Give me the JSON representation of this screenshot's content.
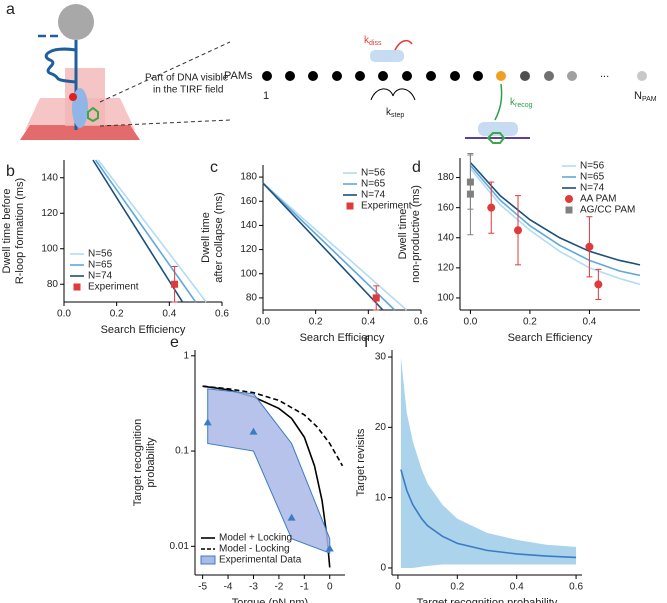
{
  "panel_a": {
    "label": "a",
    "pams": "PAMs",
    "first": "1",
    "last": "N",
    "last_sub": "PAM",
    "k": "k",
    "k_diss_sub": "diss",
    "k_step_sub": "step",
    "k_recog_sub": "recog",
    "ellipsis": "...",
    "note": [
      "Part of DNA visible",
      "in the TIRF field"
    ]
  },
  "chart_data": [
    {
      "type": "line",
      "panel": "b",
      "xlabel": "Search Efficiency",
      "ylabel": [
        "Dwell time before",
        "R-loop formation (ms)"
      ],
      "xlim": [
        0,
        0.6
      ],
      "ylim": [
        70,
        150
      ],
      "xticks": [
        {
          "value": 0,
          "label": "0.0"
        },
        0.2,
        0.4,
        0.6
      ],
      "yticks": [
        80,
        100,
        120,
        140
      ],
      "legend": "lower left",
      "series": [
        {
          "name": "N=56",
          "color": "#b3dcf2",
          "x": [
            0.13,
            0.54
          ],
          "values": [
            150,
            70
          ]
        },
        {
          "name": "N=65",
          "color": "#5fa9db",
          "x": [
            0.12,
            0.5
          ],
          "values": [
            150,
            70
          ]
        },
        {
          "name": "N=74",
          "color": "#1b4f7d",
          "x": [
            0.11,
            0.45
          ],
          "values": [
            150,
            70
          ]
        },
        {
          "name": "Experiment",
          "color": "#e03a3a",
          "marker": "square",
          "x": [
            0.42
          ],
          "values": [
            80
          ],
          "errors": [
            10
          ]
        }
      ]
    },
    {
      "type": "line",
      "panel": "c",
      "xlabel": "Search Efficiency",
      "ylabel": [
        "Dwell time",
        "after collapse (ms)"
      ],
      "xlim": [
        0,
        0.6
      ],
      "ylim": [
        70,
        190
      ],
      "xticks": [
        {
          "value": 0,
          "label": "0.0"
        },
        0.2,
        0.4,
        0.6
      ],
      "yticks": [
        80,
        100,
        120,
        140,
        160,
        180
      ],
      "legend": "upper right",
      "series": [
        {
          "name": "N=56",
          "color": "#b3dcf2",
          "x": [
            0,
            0.545
          ],
          "values": [
            175,
            70
          ]
        },
        {
          "name": "N=65",
          "color": "#5fa9db",
          "x": [
            0,
            0.5
          ],
          "values": [
            175,
            70
          ]
        },
        {
          "name": "N=74",
          "color": "#1b4f7d",
          "x": [
            0,
            0.455
          ],
          "values": [
            175,
            70
          ]
        },
        {
          "name": "Experiment",
          "color": "#e03a3a",
          "marker": "square",
          "x": [
            0.43
          ],
          "values": [
            80
          ],
          "errors": [
            10
          ]
        }
      ]
    },
    {
      "type": "line",
      "panel": "d",
      "xlabel": "Search Efficiency",
      "ylabel": [
        "Dwell time",
        "non-productive (ms)"
      ],
      "xlim": [
        -0.035,
        0.57
      ],
      "ylim": [
        92,
        193
      ],
      "xticks": [
        {
          "value": 0,
          "label": "0.0"
        },
        0.2,
        0.4
      ],
      "yticks": [
        100,
        120,
        140,
        160,
        180
      ],
      "legend": "upper right",
      "series": [
        {
          "name": "N=56",
          "color": "#b3dcf2",
          "x": [
            0,
            0.1,
            0.2,
            0.3,
            0.4,
            0.5,
            0.57
          ],
          "values": [
            186,
            162,
            145,
            131,
            120,
            113,
            109
          ]
        },
        {
          "name": "N=65",
          "color": "#5fa9db",
          "x": [
            0,
            0.1,
            0.2,
            0.3,
            0.4,
            0.5,
            0.57
          ],
          "values": [
            188,
            165,
            148,
            135,
            125,
            118,
            115
          ]
        },
        {
          "name": "N=74",
          "color": "#1b4f7d",
          "x": [
            0,
            0.1,
            0.2,
            0.3,
            0.4,
            0.5,
            0.57
          ],
          "values": [
            190,
            168,
            152,
            140,
            131,
            125,
            122
          ]
        },
        {
          "name": "AA PAM",
          "color": "#e03a3a",
          "marker": "circle",
          "x": [
            0.07,
            0.16,
            0.4,
            0.43
          ],
          "values": [
            160,
            145,
            134,
            109
          ],
          "errors": [
            17,
            23,
            20,
            10
          ]
        },
        {
          "name": "AG/CC PAM",
          "color": "#808080",
          "marker": "square",
          "x": [
            0,
            0
          ],
          "values": [
            177,
            169
          ],
          "errors": [
            18,
            27
          ]
        }
      ]
    },
    {
      "type": "line",
      "panel": "e",
      "xlabel": "Torque (pN nm)",
      "ylabel": [
        "Target recognition",
        "probability"
      ],
      "xlim": [
        -5.3,
        0.6
      ],
      "ylim": [
        0.005,
        1.15
      ],
      "yscale": "log",
      "xticks": [
        -5,
        -4,
        -3,
        -2,
        -1,
        0
      ],
      "yticks": [
        0.01,
        0.1,
        1
      ],
      "legend": "lower left",
      "series": [
        {
          "name": "Model + Locking",
          "color": "#000000",
          "x": [
            -5,
            -4,
            -3,
            -2,
            -1.5,
            -1,
            -0.6,
            -0.3,
            -0.1,
            0
          ],
          "values": [
            0.48,
            0.44,
            0.37,
            0.28,
            0.22,
            0.14,
            0.07,
            0.03,
            0.012,
            0.006
          ]
        },
        {
          "name": "Model - Locking",
          "color": "#000000",
          "dash": true,
          "x": [
            -5,
            -4,
            -3,
            -2,
            -1,
            -0.5,
            0,
            0.5
          ],
          "values": [
            0.48,
            0.45,
            0.41,
            0.34,
            0.24,
            0.18,
            0.12,
            0.07
          ]
        },
        {
          "name": "Experimental Data",
          "color": "#3a7cc4",
          "fill": "#aab9e8",
          "marker": "triangle",
          "x": [
            -4.8,
            -3,
            -1.5,
            0
          ],
          "values": [
            0.2,
            0.16,
            0.02,
            0.0095
          ],
          "upper": [
            0.45,
            0.4,
            0.12,
            0.012
          ],
          "lower": [
            0.12,
            0.1,
            0.012,
            0.0085
          ]
        }
      ]
    },
    {
      "type": "line",
      "panel": "f",
      "xlabel": "Target recognition probability",
      "ylabel": [
        "Target revisits"
      ],
      "xlim": [
        -0.02,
        0.62
      ],
      "ylim": [
        -1,
        31
      ],
      "xticks": [
        0,
        0.2,
        0.4,
        0.6
      ],
      "yticks": [
        0,
        10,
        20,
        30
      ],
      "series": [
        {
          "color": "#3a7cc4",
          "fill": "#9ccbe8",
          "x": [
            0.01,
            0.03,
            0.05,
            0.08,
            0.1,
            0.15,
            0.2,
            0.3,
            0.4,
            0.5,
            0.6
          ],
          "values": [
            14,
            11,
            9,
            7,
            6,
            4.5,
            3.5,
            2.5,
            2,
            1.7,
            1.5
          ],
          "upper": [
            30,
            22,
            18,
            14,
            12,
            9,
            7,
            5,
            4,
            3.3,
            3
          ],
          "lower": [
            0,
            0,
            0,
            0.2,
            0.3,
            0.5,
            0.5,
            0.5,
            0.5,
            0.5,
            0.5
          ]
        }
      ]
    }
  ]
}
